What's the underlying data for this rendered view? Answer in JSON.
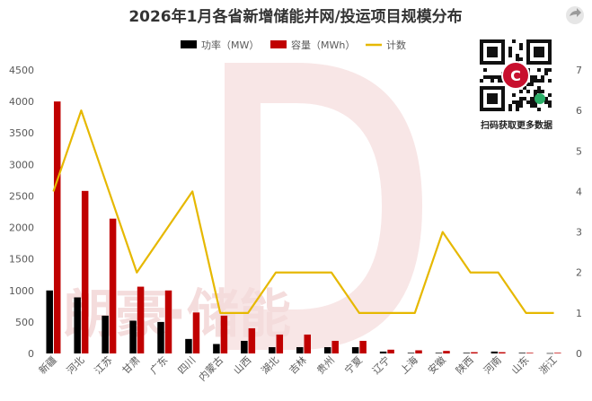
{
  "chart_data": {
    "type": "bar",
    "title": "2026年1月各省新增储能并网/投运项目规模分布",
    "categories": [
      "新疆",
      "河北",
      "江苏",
      "甘肃",
      "广东",
      "四川",
      "内蒙古",
      "山西",
      "湖北",
      "吉林",
      "贵州",
      "宁夏",
      "辽宁",
      "上海",
      "安徽",
      "陕西",
      "河南",
      "山东",
      "浙江"
    ],
    "series": [
      {
        "name": "功率（MW）",
        "axis": "left",
        "kind": "bar",
        "color": "#000000",
        "values": [
          1000,
          890,
          600,
          520,
          500,
          230,
          150,
          200,
          100,
          100,
          100,
          100,
          30,
          10,
          10,
          10,
          30,
          10,
          5
        ]
      },
      {
        "name": "容量（MWh）",
        "axis": "left",
        "kind": "bar",
        "color": "#c00000",
        "values": [
          4000,
          2580,
          2140,
          1060,
          1000,
          650,
          600,
          400,
          300,
          300,
          200,
          200,
          60,
          50,
          40,
          20,
          20,
          10,
          10
        ]
      },
      {
        "name": "计数",
        "axis": "right",
        "kind": "line",
        "color": "#e6b800",
        "values": [
          4,
          6,
          4,
          2,
          3,
          4,
          1,
          1,
          2,
          2,
          2,
          1,
          1,
          1,
          3,
          2,
          2,
          1,
          1
        ]
      }
    ],
    "y_left": {
      "min": 0,
      "max": 4500,
      "ticks": [
        "0",
        "500",
        "1000",
        "1500",
        "2000",
        "2500",
        "3000",
        "3500",
        "4000",
        "4500"
      ]
    },
    "y_right": {
      "min": 0,
      "max": 7,
      "ticks": [
        "0",
        "1",
        "2",
        "3",
        "4",
        "5",
        "6",
        "7"
      ]
    },
    "grid": false,
    "legend": "top"
  },
  "qr": {
    "caption": "扫码获取更多数据",
    "badge_letter": "C"
  },
  "watermark": {
    "text": "朗豪·储能"
  }
}
